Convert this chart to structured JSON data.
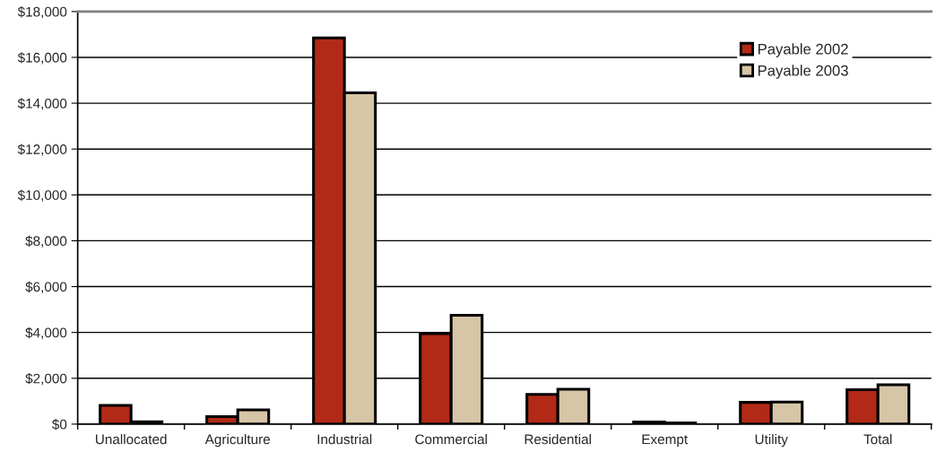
{
  "chart_data": {
    "type": "bar",
    "categories": [
      "Unallocated",
      "Agriculture",
      "Industrial",
      "Commercial",
      "Residential",
      "Exempt",
      "Utility",
      "Total"
    ],
    "series": [
      {
        "name": "Payable 2002",
        "color": "#b22a17",
        "values": [
          820,
          330,
          16850,
          3950,
          1300,
          90,
          950,
          1500
        ]
      },
      {
        "name": "Payable 2003",
        "color": "#d6c5a6",
        "values": [
          100,
          620,
          14450,
          4750,
          1520,
          50,
          960,
          1720
        ]
      }
    ],
    "ylim": [
      0,
      18000
    ],
    "yticks": [
      {
        "value": 0,
        "label": "$0"
      },
      {
        "value": 2000,
        "label": "$2,000"
      },
      {
        "value": 4000,
        "label": "$4,000"
      },
      {
        "value": 6000,
        "label": "$6,000"
      },
      {
        "value": 8000,
        "label": "$8,000"
      },
      {
        "value": 10000,
        "label": "$10,000"
      },
      {
        "value": 12000,
        "label": "$12,000"
      },
      {
        "value": 14000,
        "label": "$14,000"
      },
      {
        "value": 16000,
        "label": "$16,000"
      },
      {
        "value": 18000,
        "label": "$18,000"
      }
    ],
    "grid": "y",
    "legend": "top right"
  }
}
